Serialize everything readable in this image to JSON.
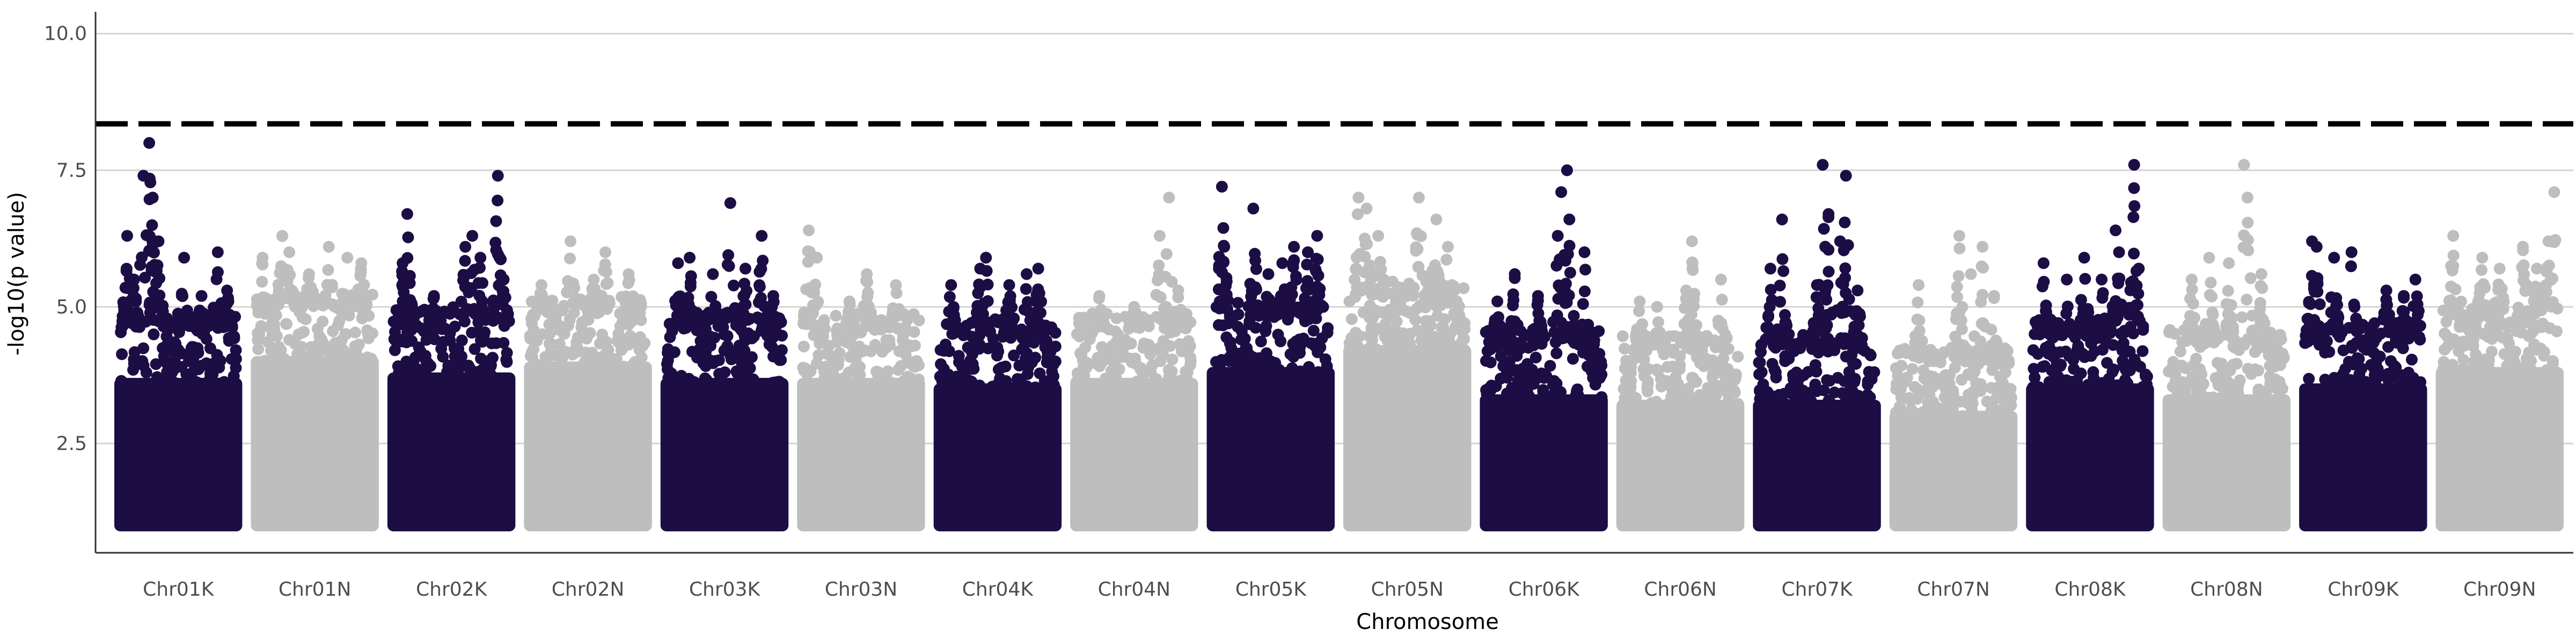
{
  "chart_data": {
    "type": "scatter",
    "subtype": "manhattan",
    "xlabel": "Chromosome",
    "ylabel": "-log10(p value)",
    "ylim": [
      0.5,
      10.4
    ],
    "yticks": [
      2.5,
      5.0,
      7.5,
      10.0
    ],
    "grid": "horizontal major lines only",
    "legend": "none",
    "threshold": {
      "value": 8.35,
      "style": "dashed",
      "color": "#000000"
    },
    "colors": {
      "odd": "#1c0d45",
      "even": "#bebebe"
    },
    "base_min": 1.0,
    "categories": [
      "Chr01K",
      "Chr01N",
      "Chr02K",
      "Chr02N",
      "Chr03K",
      "Chr03N",
      "Chr04K",
      "Chr04N",
      "Chr05K",
      "Chr05N",
      "Chr06K",
      "Chr06N",
      "Chr07K",
      "Chr07N",
      "Chr08K",
      "Chr08N",
      "Chr09K",
      "Chr09N"
    ],
    "series": [
      {
        "chromosome": "Chr01K",
        "bulk_top": 4.6,
        "peaks": [
          [
            0.06,
            6.3
          ],
          [
            0.12,
            5.5
          ],
          [
            0.2,
            7.4
          ],
          [
            0.25,
            8.0
          ],
          [
            0.28,
            7.0
          ],
          [
            0.33,
            6.2
          ],
          [
            0.55,
            5.9
          ],
          [
            0.7,
            5.2
          ],
          [
            0.84,
            6.0
          ],
          [
            0.92,
            5.3
          ]
        ]
      },
      {
        "chromosome": "Chr01N",
        "bulk_top": 5.0,
        "peaks": [
          [
            0.05,
            5.9
          ],
          [
            0.22,
            6.3
          ],
          [
            0.28,
            6.0
          ],
          [
            0.45,
            5.6
          ],
          [
            0.62,
            6.1
          ],
          [
            0.78,
            5.9
          ],
          [
            0.9,
            5.8
          ]
        ]
      },
      {
        "chromosome": "Chr02K",
        "bulk_top": 4.7,
        "peaks": [
          [
            0.08,
            5.8
          ],
          [
            0.12,
            6.7
          ],
          [
            0.35,
            5.2
          ],
          [
            0.62,
            6.1
          ],
          [
            0.68,
            6.3
          ],
          [
            0.75,
            5.9
          ],
          [
            0.9,
            7.4
          ],
          [
            0.95,
            5.5
          ]
        ]
      },
      {
        "chromosome": "Chr02N",
        "bulk_top": 4.9,
        "peaks": [
          [
            0.1,
            5.4
          ],
          [
            0.35,
            6.2
          ],
          [
            0.55,
            5.5
          ],
          [
            0.65,
            6.0
          ],
          [
            0.85,
            5.6
          ]
        ]
      },
      {
        "chromosome": "Chr03K",
        "bulk_top": 4.6,
        "peaks": [
          [
            0.1,
            5.8
          ],
          [
            0.2,
            5.9
          ],
          [
            0.4,
            5.6
          ],
          [
            0.55,
            6.9
          ],
          [
            0.68,
            5.7
          ],
          [
            0.82,
            6.3
          ],
          [
            0.92,
            5.2
          ]
        ]
      },
      {
        "chromosome": "Chr03N",
        "bulk_top": 4.6,
        "peaks": [
          [
            0.05,
            6.4
          ],
          [
            0.12,
            5.9
          ],
          [
            0.4,
            5.1
          ],
          [
            0.55,
            5.6
          ],
          [
            0.8,
            5.4
          ]
        ]
      },
      {
        "chromosome": "Chr04K",
        "bulk_top": 4.5,
        "peaks": [
          [
            0.1,
            5.4
          ],
          [
            0.35,
            5.7
          ],
          [
            0.4,
            5.9
          ],
          [
            0.6,
            5.4
          ],
          [
            0.75,
            5.6
          ],
          [
            0.85,
            5.7
          ]
        ]
      },
      {
        "chromosome": "Chr04N",
        "bulk_top": 4.6,
        "peaks": [
          [
            0.2,
            5.2
          ],
          [
            0.5,
            5.0
          ],
          [
            0.72,
            6.3
          ],
          [
            0.8,
            7.0
          ],
          [
            0.88,
            5.3
          ]
        ]
      },
      {
        "chromosome": "Chr05K",
        "bulk_top": 4.8,
        "peaks": [
          [
            0.08,
            7.2
          ],
          [
            0.1,
            6.1
          ],
          [
            0.35,
            6.8
          ],
          [
            0.48,
            5.6
          ],
          [
            0.6,
            5.8
          ],
          [
            0.7,
            6.1
          ],
          [
            0.82,
            6.0
          ],
          [
            0.9,
            6.3
          ]
        ]
      },
      {
        "chromosome": "Chr05N",
        "bulk_top": 5.2,
        "peaks": [
          [
            0.08,
            7.0
          ],
          [
            0.15,
            6.8
          ],
          [
            0.25,
            6.3
          ],
          [
            0.6,
            7.0
          ],
          [
            0.75,
            6.6
          ],
          [
            0.85,
            6.1
          ]
        ]
      },
      {
        "chromosome": "Chr06K",
        "bulk_top": 4.3,
        "peaks": [
          [
            0.1,
            5.1
          ],
          [
            0.25,
            5.6
          ],
          [
            0.45,
            5.2
          ],
          [
            0.62,
            6.3
          ],
          [
            0.65,
            7.1
          ],
          [
            0.7,
            7.5
          ],
          [
            0.72,
            6.6
          ],
          [
            0.85,
            6.0
          ]
        ]
      },
      {
        "chromosome": "Chr06N",
        "bulk_top": 4.2,
        "peaks": [
          [
            0.15,
            5.1
          ],
          [
            0.3,
            5.0
          ],
          [
            0.55,
            5.3
          ],
          [
            0.6,
            6.2
          ],
          [
            0.85,
            5.5
          ]
        ]
      },
      {
        "chromosome": "Chr07K",
        "bulk_top": 4.2,
        "peaks": [
          [
            0.1,
            5.7
          ],
          [
            0.2,
            6.6
          ],
          [
            0.5,
            5.4
          ],
          [
            0.55,
            7.6
          ],
          [
            0.6,
            6.7
          ],
          [
            0.7,
            6.2
          ],
          [
            0.75,
            7.4
          ],
          [
            0.85,
            5.3
          ]
        ]
      },
      {
        "chromosome": "Chr07N",
        "bulk_top": 4.0,
        "peaks": [
          [
            0.2,
            5.4
          ],
          [
            0.55,
            6.3
          ],
          [
            0.65,
            5.6
          ],
          [
            0.75,
            6.1
          ],
          [
            0.85,
            5.2
          ]
        ]
      },
      {
        "chromosome": "Chr08K",
        "bulk_top": 4.5,
        "peaks": [
          [
            0.1,
            5.8
          ],
          [
            0.3,
            5.5
          ],
          [
            0.45,
            5.9
          ],
          [
            0.6,
            5.5
          ],
          [
            0.72,
            6.4
          ],
          [
            0.75,
            6.0
          ],
          [
            0.88,
            7.6
          ],
          [
            0.92,
            5.7
          ]
        ]
      },
      {
        "chromosome": "Chr08N",
        "bulk_top": 4.3,
        "peaks": [
          [
            0.2,
            5.5
          ],
          [
            0.35,
            5.9
          ],
          [
            0.52,
            5.8
          ],
          [
            0.65,
            7.6
          ],
          [
            0.68,
            7.0
          ],
          [
            0.8,
            5.6
          ]
        ]
      },
      {
        "chromosome": "Chr09K",
        "bulk_top": 4.5,
        "peaks": [
          [
            0.06,
            6.2
          ],
          [
            0.1,
            6.1
          ],
          [
            0.25,
            5.9
          ],
          [
            0.4,
            6.0
          ],
          [
            0.7,
            5.3
          ],
          [
            0.85,
            5.2
          ],
          [
            0.95,
            5.5
          ]
        ]
      },
      {
        "chromosome": "Chr09N",
        "bulk_top": 4.8,
        "peaks": [
          [
            0.1,
            6.3
          ],
          [
            0.35,
            5.9
          ],
          [
            0.5,
            5.7
          ],
          [
            0.7,
            6.1
          ],
          [
            0.82,
            5.7
          ],
          [
            0.92,
            6.2
          ],
          [
            0.97,
            7.1
          ]
        ]
      }
    ]
  }
}
